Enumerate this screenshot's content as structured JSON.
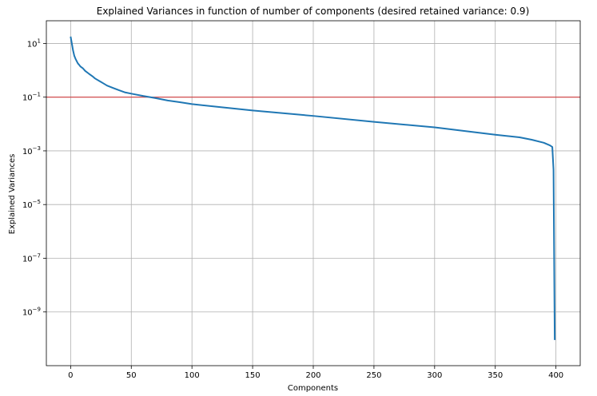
{
  "chart_data": {
    "type": "line",
    "title": "Explained Variances in function of number of components (desired retained variance: 0.9)",
    "xlabel": "Components",
    "ylabel": "Explained Variances",
    "xlim": [
      -20,
      420
    ],
    "ylim": [
      1e-11,
      70
    ],
    "yscale": "log",
    "grid": true,
    "x_ticks": [
      0,
      50,
      100,
      150,
      200,
      250,
      300,
      350,
      400
    ],
    "y_ticks": [
      {
        "value": 10,
        "base": "10",
        "exp": "1"
      },
      {
        "value": 0.1,
        "base": "10",
        "exp": "−1"
      },
      {
        "value": 0.001,
        "base": "10",
        "exp": "−3"
      },
      {
        "value": 1e-05,
        "base": "10",
        "exp": "−5"
      },
      {
        "value": 1e-07,
        "base": "10",
        "exp": "−7"
      },
      {
        "value": 1e-09,
        "base": "10",
        "exp": "−9"
      }
    ],
    "threshold_line": {
      "y": 0.1,
      "color": "#d62728"
    },
    "series": [
      {
        "color": "#1f77b4",
        "x": [
          0,
          1,
          2,
          3,
          4,
          5,
          6,
          7,
          8,
          10,
          12,
          15,
          18,
          20,
          25,
          30,
          35,
          40,
          45,
          50,
          60,
          70,
          80,
          90,
          100,
          120,
          150,
          200,
          250,
          300,
          350,
          370,
          380,
          390,
          395,
          397,
          398,
          399
        ],
        "y": [
          18,
          10,
          5.5,
          3.5,
          2.7,
          2.2,
          1.8,
          1.6,
          1.4,
          1.2,
          0.95,
          0.75,
          0.6,
          0.5,
          0.37,
          0.27,
          0.22,
          0.18,
          0.15,
          0.135,
          0.11,
          0.092,
          0.075,
          0.065,
          0.055,
          0.044,
          0.032,
          0.02,
          0.012,
          0.0075,
          0.004,
          0.0032,
          0.0026,
          0.002,
          0.0016,
          0.0014,
          0.0002,
          9e-11
        ]
      }
    ]
  }
}
